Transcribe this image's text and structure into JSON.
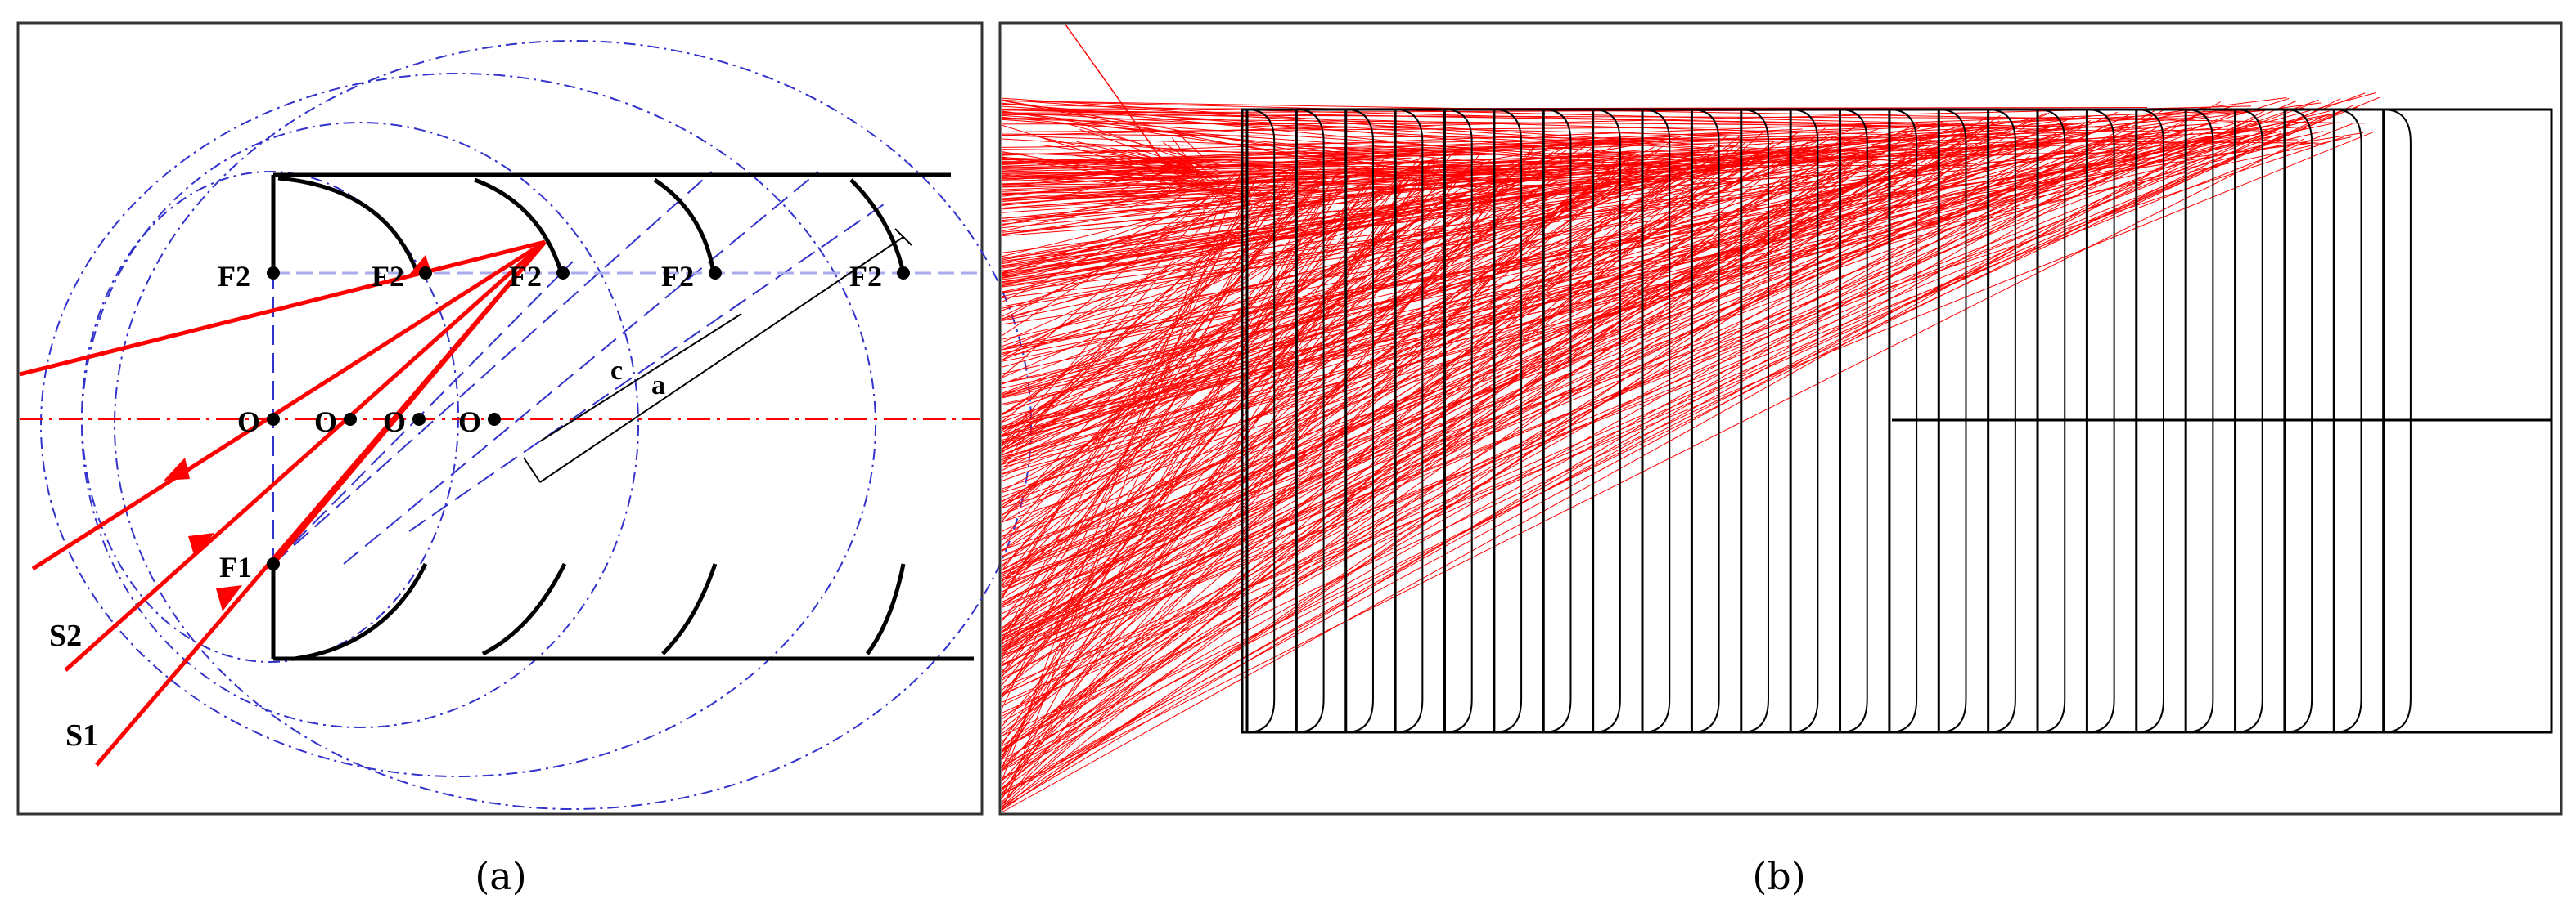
{
  "panel_a": {
    "caption": "(a)",
    "focus_labels": [
      "F2",
      "F2",
      "F2",
      "F2",
      "F2"
    ],
    "f1_label": "F1",
    "center_labels": [
      "O",
      "O",
      "O",
      "O"
    ],
    "dim_c": "c",
    "dim_a": "a",
    "ray_labels": [
      "S2",
      "S1"
    ]
  },
  "panel_b": {
    "caption": "(b)",
    "element_count": 24
  },
  "colors": {
    "ray": "#ff0000",
    "construction": "#3333cc",
    "structure": "#000000",
    "frame": "#333333"
  }
}
